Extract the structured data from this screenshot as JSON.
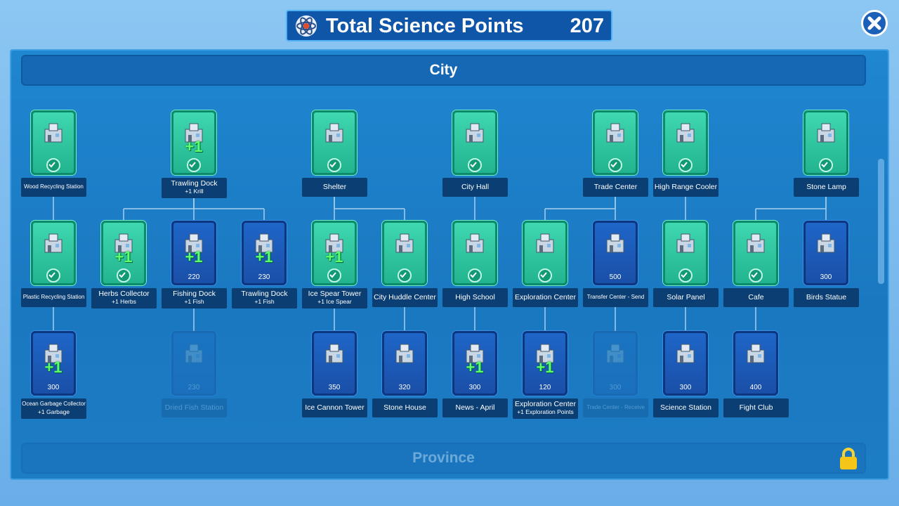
{
  "header": {
    "title": "Total Science Points",
    "points": "207"
  },
  "sections": [
    {
      "title": "City",
      "locked": false
    },
    {
      "title": "Province",
      "locked": true
    }
  ],
  "nodes": [
    {
      "name": "Wood Recycling Station",
      "state": "researched"
    },
    {
      "name": "Trawling Dock",
      "subtitle": "+1 Krill",
      "bonus": "+1",
      "state": "researched"
    },
    {
      "name": "Shelter",
      "state": "researched"
    },
    {
      "name": "City Hall",
      "state": "researched"
    },
    {
      "name": "Trade Center",
      "state": "researched"
    },
    {
      "name": "High Range Cooler",
      "state": "researched"
    },
    {
      "name": "Stone Lamp",
      "state": "researched"
    },
    {
      "name": "Plastic Recycling Station",
      "state": "researched"
    },
    {
      "name": "Herbs Collector",
      "subtitle": "+1 Herbs",
      "bonus": "+1",
      "state": "researched"
    },
    {
      "name": "Fishing Dock",
      "subtitle": "+1 Fish",
      "bonus": "+1",
      "cost": "220",
      "state": "available"
    },
    {
      "name": "Trawling Dock",
      "subtitle": "+1 Fish",
      "bonus": "+1",
      "cost": "230",
      "state": "available"
    },
    {
      "name": "Ice Spear Tower",
      "subtitle": "+1 Ice Spear",
      "bonus": "+1",
      "state": "researched"
    },
    {
      "name": "City Huddle Center",
      "state": "researched"
    },
    {
      "name": "High School",
      "state": "researched"
    },
    {
      "name": "Exploration Center",
      "state": "researched"
    },
    {
      "name": "Transfer Center - Send",
      "cost": "500",
      "state": "available"
    },
    {
      "name": "Solar Panel",
      "state": "researched"
    },
    {
      "name": "Cafe",
      "state": "researched"
    },
    {
      "name": "Birds Statue",
      "cost": "300",
      "state": "available"
    },
    {
      "name": "Ocean Garbage Collector",
      "subtitle": "+1 Garbage",
      "bonus": "+1",
      "cost": "300",
      "state": "available"
    },
    {
      "name": "Dried Fish Station",
      "cost": "230",
      "state": "hidden"
    },
    {
      "name": "Ice Cannon Tower",
      "cost": "350",
      "state": "available"
    },
    {
      "name": "Stone House",
      "cost": "320",
      "state": "available"
    },
    {
      "name": "News - April",
      "bonus": "+1",
      "cost": "300",
      "state": "available"
    },
    {
      "name": "Exploration Center",
      "subtitle": "+1 Exploration Points",
      "bonus": "+1",
      "cost": "120",
      "state": "available"
    },
    {
      "name": "Trade Center - Receive",
      "cost": "300",
      "state": "hidden"
    },
    {
      "name": "Science Station",
      "cost": "300",
      "state": "available"
    },
    {
      "name": "Fight Club",
      "cost": "400",
      "state": "available"
    }
  ]
}
